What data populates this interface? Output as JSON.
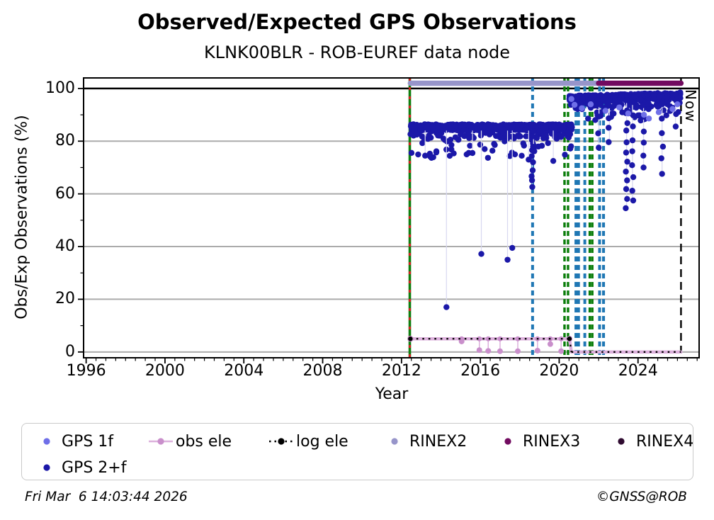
{
  "header": {
    "title": "Observed/Expected GPS Observations",
    "subtitle": "KLNK00BLR - ROB-EUREF data node"
  },
  "footer": {
    "timestamp": "Fri Mar  6 14:03:44 2026",
    "copyright": "©GNSS@ROB"
  },
  "colors": {
    "gps_2f": "#1b18a8",
    "gps_1f": "#6f6fe8",
    "obs_ele_line": "#dcb0dc",
    "obs_ele_marker": "#c98fcb",
    "log_ele": "#000000",
    "rinex2": "#9795ca",
    "rinex3": "#720b60",
    "rinex4": "#2f0b30",
    "event_blue": "#1f77b4",
    "event_green": "#0a7d0a",
    "event_red": "#d42020",
    "grid_gray": "#ababab",
    "stem": "#d8d8f0"
  },
  "legend": {
    "rows": [
      [
        {
          "label": "GPS 1f",
          "marker": "dot",
          "color": "#6f6fe8"
        },
        {
          "label": "obs ele",
          "marker": "line-dot",
          "color": "#c98fcb",
          "line_color": "#dcb0dc"
        },
        {
          "label": "log ele",
          "marker": "dotted-line-dot",
          "color": "#000000",
          "line_color": "#000000"
        },
        {
          "label": "RINEX2",
          "marker": "dot",
          "color": "#9795ca"
        },
        {
          "label": "RINEX3",
          "marker": "dot",
          "color": "#720b60"
        },
        {
          "label": "RINEX4",
          "marker": "dot",
          "color": "#2f0b30"
        }
      ],
      [
        {
          "label": "GPS 2+f",
          "marker": "dot",
          "color": "#1b18a8"
        }
      ]
    ]
  },
  "chart_data": {
    "type": "scatter",
    "title": "Observed/Expected GPS Observations",
    "subtitle": "KLNK00BLR - ROB-EUREF data node",
    "xlabel": "Year",
    "ylabel": "Obs/Exp Observations (%)",
    "xlim": [
      1995.87,
      2027.1
    ],
    "ylim": [
      -2.2,
      104
    ],
    "xticks": [
      1996,
      2000,
      2004,
      2008,
      2012,
      2016,
      2020,
      2024
    ],
    "x_minor_step": 0.5,
    "yticks": [
      0,
      20,
      40,
      60,
      80,
      100
    ],
    "y_minor_step": 10,
    "grid": {
      "horizontal_gray": [
        0,
        20,
        40,
        60,
        80
      ],
      "reference_line_black": 100
    },
    "legend_position": "below",
    "now": {
      "x": 2026.18,
      "label": "Now"
    },
    "series": [
      {
        "name": "GPS 2+f",
        "type": "scatter_clusters",
        "color": "#1b18a8",
        "clusters": [
          {
            "x_range": [
              2012.45,
              2020.65
            ],
            "band_top": [
              86.4,
              86.4
            ],
            "dense_band": [
              80,
              86.4
            ],
            "sparse_to": 75,
            "n": 680
          },
          {
            "x_range": [
              2020.5,
              2026.15
            ],
            "band_top": [
              97.2,
              98.5
            ],
            "dense_band": [
              92.5,
              98.5
            ],
            "sparse_to": 89,
            "n": 560
          }
        ],
        "dip_strings": [
          {
            "x": 2018.63,
            "y_top": 85.0,
            "y_bottom": 63.0,
            "count": 11
          },
          {
            "x": 2018.7,
            "y_top": 84.0,
            "y_bottom": 75.5,
            "count": 4
          },
          {
            "x": 2022.02,
            "y_top": 94.0,
            "y_bottom": 78.0,
            "count": 4
          },
          {
            "x": 2022.55,
            "y_top": 94.0,
            "y_bottom": 80.0,
            "count": 4
          },
          {
            "x": 2023.42,
            "y_top": 95.0,
            "y_bottom": 54.0,
            "count": 12
          },
          {
            "x": 2023.72,
            "y_top": 95.0,
            "y_bottom": 57.0,
            "count": 9
          },
          {
            "x": 2024.28,
            "y_top": 94.0,
            "y_bottom": 70.0,
            "count": 6
          },
          {
            "x": 2025.22,
            "y_top": 94.0,
            "y_bottom": 68.0,
            "count": 6
          },
          {
            "x": 2025.9,
            "y_top": 95.5,
            "y_bottom": 85.0,
            "count": 3
          }
        ],
        "outlier_points": [
          [
            2014.28,
            17.0
          ],
          [
            2016.05,
            37.2
          ],
          [
            2017.38,
            35.0
          ],
          [
            2017.62,
            39.5
          ],
          [
            2019.7,
            72.5
          ],
          [
            2013.2,
            74.5
          ],
          [
            2015.6,
            75.5
          ],
          [
            2018.45,
            73.0
          ]
        ]
      },
      {
        "name": "GPS 1f",
        "type": "scatter",
        "color": "#6f6fe8",
        "points": [
          [
            2020.62,
            96.0
          ],
          [
            2020.78,
            93.8
          ],
          [
            2021.15,
            92.5
          ],
          [
            2021.6,
            94.0
          ],
          [
            2022.35,
            91.5
          ],
          [
            2023.05,
            92.8
          ],
          [
            2023.5,
            90.5
          ],
          [
            2024.3,
            90.0
          ],
          [
            2024.55,
            88.6
          ],
          [
            2025.05,
            91.0
          ],
          [
            2025.75,
            92.2
          ],
          [
            2026.0,
            94.0
          ]
        ]
      },
      {
        "name": "obs ele",
        "type": "line",
        "line_color": "#dcb0dc",
        "marker_color": "#c98fcb",
        "segments": [
          {
            "x": [
              2012.45,
              2020.52
            ],
            "y": 5
          },
          {
            "x": [
              2020.52,
              2020.62
            ],
            "y_from": 5,
            "y_to": 0
          },
          {
            "x": [
              2020.62,
              2026.18
            ],
            "y": 0
          }
        ],
        "lollipops": [
          {
            "x": 2015.05,
            "y": 4.0
          },
          {
            "x": 2015.95,
            "y": 0.7
          },
          {
            "x": 2016.4,
            "y": 0.4
          },
          {
            "x": 2017.0,
            "y": 0.3
          },
          {
            "x": 2017.9,
            "y": 0.3
          },
          {
            "x": 2018.9,
            "y": 0.5
          },
          {
            "x": 2019.55,
            "y": 3.0
          },
          {
            "x": 2020.1,
            "y": 0.3
          }
        ],
        "end_markers": [
          [
            2012.45,
            5
          ],
          [
            2020.52,
            5
          ]
        ]
      },
      {
        "name": "log ele",
        "type": "dotted_line",
        "color": "#000000",
        "segments": [
          {
            "x": [
              2012.45,
              2020.52
            ],
            "y": 5
          },
          {
            "x": [
              2020.52,
              2020.62
            ],
            "y_from": 5,
            "y_to": 0
          },
          {
            "x": [
              2020.62,
              2026.18
            ],
            "y": 0
          }
        ],
        "end_markers": [
          [
            2012.45,
            5
          ],
          [
            2020.52,
            5
          ]
        ]
      },
      {
        "name": "RINEX2",
        "type": "bar_line",
        "color": "#9795ca",
        "y": 102,
        "x_range": [
          2012.45,
          2021.95
        ]
      },
      {
        "name": "RINEX3",
        "type": "bar_line",
        "color": "#720b60",
        "y": 102,
        "x_range": [
          2022.0,
          2026.18
        ]
      },
      {
        "name": "RINEX4",
        "type": "bar_line",
        "color": "#2f0b30",
        "y": null,
        "x_range": null
      }
    ],
    "event_lines": [
      {
        "x": 2012.42,
        "color": "#0f7f0f",
        "style": "solid",
        "width": 3.6,
        "name": "data-start-green-line"
      },
      {
        "x": 2012.42,
        "color": "#d42020",
        "style": "dashed",
        "dash": "4 9",
        "width": 3.0,
        "name": "data-start-red-overlay"
      },
      {
        "x": 2018.65,
        "color": "#1f77b4",
        "style": "dashed",
        "dash": "7 5",
        "width": 4.0,
        "name": "event-blue-2018"
      },
      {
        "x": 2020.27,
        "color": "#0a7d0a",
        "style": "dashed",
        "dash": "7 5",
        "width": 3.4,
        "name": "event-green-2020a"
      },
      {
        "x": 2020.45,
        "color": "#0a7d0a",
        "style": "dashed",
        "dash": "7 5",
        "width": 3.4,
        "name": "event-green-2020b"
      },
      {
        "x": 2020.85,
        "color": "#1f77b4",
        "style": "dashed",
        "dash": "7 5",
        "width": 4.0,
        "name": "event-blue-2020a"
      },
      {
        "x": 2020.98,
        "color": "#1f77b4",
        "style": "dashed",
        "dash": "7 5",
        "width": 4.0,
        "name": "event-blue-2020b"
      },
      {
        "x": 2021.3,
        "color": "#1f77b4",
        "style": "dashed",
        "dash": "7 5",
        "width": 4.0,
        "name": "event-blue-2021"
      },
      {
        "x": 2021.55,
        "color": "#0a7d0a",
        "style": "dashed",
        "dash": "7 5",
        "width": 3.4,
        "name": "event-green-2021a"
      },
      {
        "x": 2021.68,
        "color": "#0a7d0a",
        "style": "dashed",
        "dash": "7 5",
        "width": 3.4,
        "name": "event-green-2021b"
      },
      {
        "x": 2022.05,
        "color": "#1f77b4",
        "style": "dashed",
        "dash": "7 5",
        "width": 4.0,
        "name": "event-blue-2022a"
      },
      {
        "x": 2022.25,
        "color": "#1f77b4",
        "style": "dashed",
        "dash": "7 5",
        "width": 4.0,
        "name": "event-blue-2022b"
      },
      {
        "x": 2026.18,
        "color": "#000000",
        "style": "dashed",
        "dash": "11 7",
        "width": 2.4,
        "name": "now-line"
      }
    ]
  }
}
